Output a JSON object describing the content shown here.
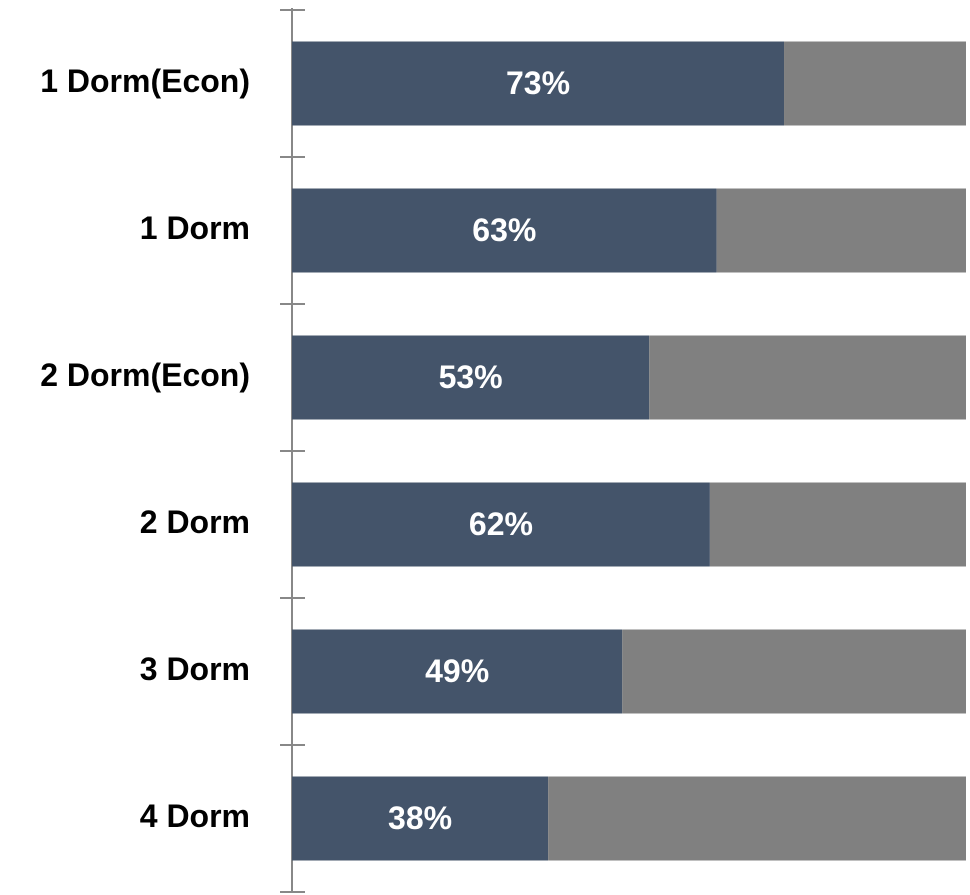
{
  "chart_data": {
    "type": "stacked_barh",
    "categories": [
      "1 Dorm(Econ)",
      "1 Dorm",
      "2 Dorm(Econ)",
      "2 Dorm",
      "3 Dorm",
      "4 Dorm"
    ],
    "series": [
      {
        "color": "#44546a",
        "values": [
          73,
          63,
          53,
          62,
          49,
          38
        ],
        "value_labels": [
          "73%",
          "63%",
          "53%",
          "62%",
          "49%",
          "38%"
        ]
      },
      {
        "color": "#808080",
        "values": [
          27,
          37,
          47,
          38,
          51,
          62
        ]
      }
    ],
    "xlim": [
      0,
      100
    ]
  }
}
